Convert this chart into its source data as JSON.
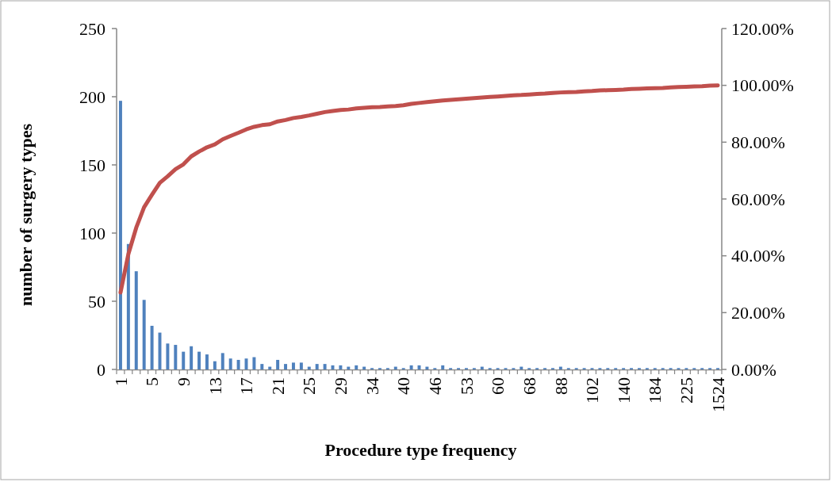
{
  "chart_data": {
    "type": "bar",
    "xlabel": "Procedure type frequency",
    "ylabel": "number of surgery types",
    "categories": [
      "1",
      null,
      null,
      null,
      "5",
      null,
      null,
      null,
      "9",
      null,
      null,
      null,
      "13",
      null,
      null,
      null,
      "17",
      null,
      null,
      null,
      "21",
      null,
      null,
      null,
      "25",
      null,
      null,
      null,
      "29",
      null,
      null,
      null,
      "34",
      null,
      null,
      null,
      "40",
      null,
      null,
      null,
      "46",
      null,
      null,
      null,
      "53",
      null,
      null,
      null,
      "60",
      null,
      null,
      null,
      "68",
      null,
      null,
      null,
      "88",
      null,
      null,
      null,
      "102",
      null,
      null,
      null,
      "140",
      null,
      null,
      null,
      "184",
      null,
      null,
      null,
      "225",
      null,
      null,
      null,
      "1524"
    ],
    "series": [
      {
        "color": "#4f81bd",
        "values": [
          197,
          92,
          72,
          51,
          32,
          27,
          19,
          18,
          13,
          17,
          13,
          11,
          6,
          12,
          8,
          7,
          8,
          9,
          4,
          2,
          7,
          4,
          5,
          5,
          2,
          4,
          4,
          3,
          3,
          2,
          3,
          2,
          1,
          1,
          1,
          2,
          1,
          3,
          3,
          2,
          1,
          3,
          1,
          1,
          1,
          1,
          2,
          1,
          1,
          1,
          1,
          2,
          1,
          1,
          1,
          1,
          2,
          1,
          1,
          1,
          1,
          1,
          1,
          1,
          1,
          1,
          1,
          1,
          1,
          1,
          1,
          1,
          1,
          1,
          1,
          1,
          1
        ]
      },
      {
        "type": "line",
        "axis": "y2",
        "color": "#c0504d",
        "values": [
          27.1,
          40.6,
          49.9,
          57.1,
          61.5,
          65.7,
          68.0,
          70.5,
          72.2,
          75.0,
          76.7,
          78.2,
          79.2,
          81.0,
          82.2,
          83.3,
          84.5,
          85.4,
          86.0,
          86.3,
          87.3,
          87.8,
          88.5,
          88.9,
          89.4,
          90.0,
          90.6,
          91.0,
          91.3,
          91.5,
          91.9,
          92.1,
          92.3,
          92.4,
          92.6,
          92.7,
          93.0,
          93.5,
          93.8,
          94.1,
          94.4,
          94.7,
          94.9,
          95.1,
          95.3,
          95.5,
          95.7,
          95.9,
          96.1,
          96.3,
          96.5,
          96.6,
          96.8,
          97.0,
          97.1,
          97.3,
          97.5,
          97.6,
          97.7,
          97.9,
          98.0,
          98.2,
          98.3,
          98.4,
          98.5,
          98.7,
          98.8,
          98.9,
          99.0,
          99.1,
          99.3,
          99.4,
          99.5,
          99.6,
          99.7,
          99.9,
          100
        ]
      }
    ],
    "ylim": [
      0,
      250
    ],
    "yticks": [
      0,
      50,
      100,
      150,
      200,
      250
    ],
    "y2lim": [
      0,
      120
    ],
    "y2ticks": [
      {
        "value": 0,
        "label": "0.00%"
      },
      {
        "value": 20,
        "label": "20.00%"
      },
      {
        "value": 40,
        "label": "40.00%"
      },
      {
        "value": 60,
        "label": "60.00%"
      },
      {
        "value": 80,
        "label": "80.00%"
      },
      {
        "value": 100,
        "label": "100.00%"
      },
      {
        "value": 120,
        "label": "120.00%"
      }
    ],
    "grid": false,
    "marker": "none",
    "line_style": "solid"
  }
}
